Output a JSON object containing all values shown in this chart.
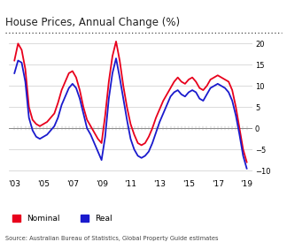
{
  "title": "House Prices, Annual Change (%)",
  "source": "Source: Australian Bureau of Statistics, Global Property Guide estimates",
  "ylim": [
    -12,
    22
  ],
  "yticks": [
    -10,
    -5,
    0,
    5,
    10,
    15,
    20
  ],
  "nominal_color": "#e8001c",
  "real_color": "#1a1acd",
  "background_color": "#ffffff",
  "nominal": {
    "years": [
      2003.0,
      2003.25,
      2003.5,
      2003.75,
      2004.0,
      2004.25,
      2004.5,
      2004.75,
      2005.0,
      2005.25,
      2005.5,
      2005.75,
      2006.0,
      2006.25,
      2006.5,
      2006.75,
      2007.0,
      2007.25,
      2007.5,
      2007.75,
      2008.0,
      2008.25,
      2008.5,
      2008.75,
      2009.0,
      2009.25,
      2009.5,
      2009.75,
      2010.0,
      2010.25,
      2010.5,
      2010.75,
      2011.0,
      2011.25,
      2011.5,
      2011.75,
      2012.0,
      2012.25,
      2012.5,
      2012.75,
      2013.0,
      2013.25,
      2013.5,
      2013.75,
      2014.0,
      2014.25,
      2014.5,
      2014.75,
      2015.0,
      2015.25,
      2015.5,
      2015.75,
      2016.0,
      2016.25,
      2016.5,
      2016.75,
      2017.0,
      2017.25,
      2017.5,
      2017.75,
      2018.0,
      2018.25,
      2018.5,
      2018.75,
      2019.0
    ],
    "values": [
      16.0,
      20.0,
      18.5,
      14.0,
      5.0,
      2.0,
      1.0,
      0.5,
      1.0,
      1.5,
      2.5,
      3.5,
      6.0,
      9.0,
      11.0,
      13.0,
      13.5,
      12.0,
      9.0,
      5.0,
      2.0,
      0.5,
      -1.0,
      -2.5,
      -3.5,
      3.0,
      11.0,
      17.0,
      20.5,
      16.0,
      10.0,
      5.0,
      1.0,
      -1.5,
      -3.5,
      -4.0,
      -3.5,
      -2.0,
      0.0,
      2.5,
      4.5,
      6.5,
      8.0,
      9.5,
      11.0,
      12.0,
      11.0,
      10.5,
      11.5,
      12.0,
      11.0,
      9.5,
      9.0,
      10.0,
      11.5,
      12.0,
      12.5,
      12.0,
      11.5,
      11.0,
      9.0,
      5.0,
      0.0,
      -5.0,
      -8.0
    ]
  },
  "real": {
    "years": [
      2003.0,
      2003.25,
      2003.5,
      2003.75,
      2004.0,
      2004.25,
      2004.5,
      2004.75,
      2005.0,
      2005.25,
      2005.5,
      2005.75,
      2006.0,
      2006.25,
      2006.5,
      2006.75,
      2007.0,
      2007.25,
      2007.5,
      2007.75,
      2008.0,
      2008.25,
      2008.5,
      2008.75,
      2009.0,
      2009.25,
      2009.5,
      2009.75,
      2010.0,
      2010.25,
      2010.5,
      2010.75,
      2011.0,
      2011.25,
      2011.5,
      2011.75,
      2012.0,
      2012.25,
      2012.5,
      2012.75,
      2013.0,
      2013.25,
      2013.5,
      2013.75,
      2014.0,
      2014.25,
      2014.5,
      2014.75,
      2015.0,
      2015.25,
      2015.5,
      2015.75,
      2016.0,
      2016.25,
      2016.5,
      2016.75,
      2017.0,
      2017.25,
      2017.5,
      2017.75,
      2018.0,
      2018.25,
      2018.5,
      2018.75,
      2019.0
    ],
    "values": [
      13.0,
      16.0,
      15.5,
      11.0,
      2.5,
      -0.5,
      -2.0,
      -2.5,
      -2.0,
      -1.5,
      -0.5,
      0.5,
      2.5,
      5.5,
      7.5,
      9.5,
      10.5,
      9.5,
      7.0,
      3.5,
      0.0,
      -1.5,
      -3.5,
      -5.5,
      -7.5,
      -2.0,
      7.0,
      13.0,
      16.5,
      12.0,
      7.0,
      2.0,
      -2.5,
      -5.0,
      -6.5,
      -7.0,
      -6.5,
      -5.5,
      -3.5,
      -1.0,
      1.5,
      3.5,
      5.5,
      7.5,
      8.5,
      9.0,
      8.0,
      7.5,
      8.5,
      9.0,
      8.5,
      7.0,
      6.5,
      8.0,
      9.5,
      10.0,
      10.5,
      10.0,
      9.5,
      8.5,
      6.5,
      3.0,
      -1.5,
      -6.5,
      -9.5
    ]
  },
  "xticks": [
    2003,
    2005,
    2007,
    2009,
    2011,
    2013,
    2015,
    2017,
    2019
  ],
  "xticklabels": [
    "'03",
    "'05",
    "'07",
    "'09",
    "'11",
    "'13",
    "'15",
    "'17",
    "'19"
  ]
}
